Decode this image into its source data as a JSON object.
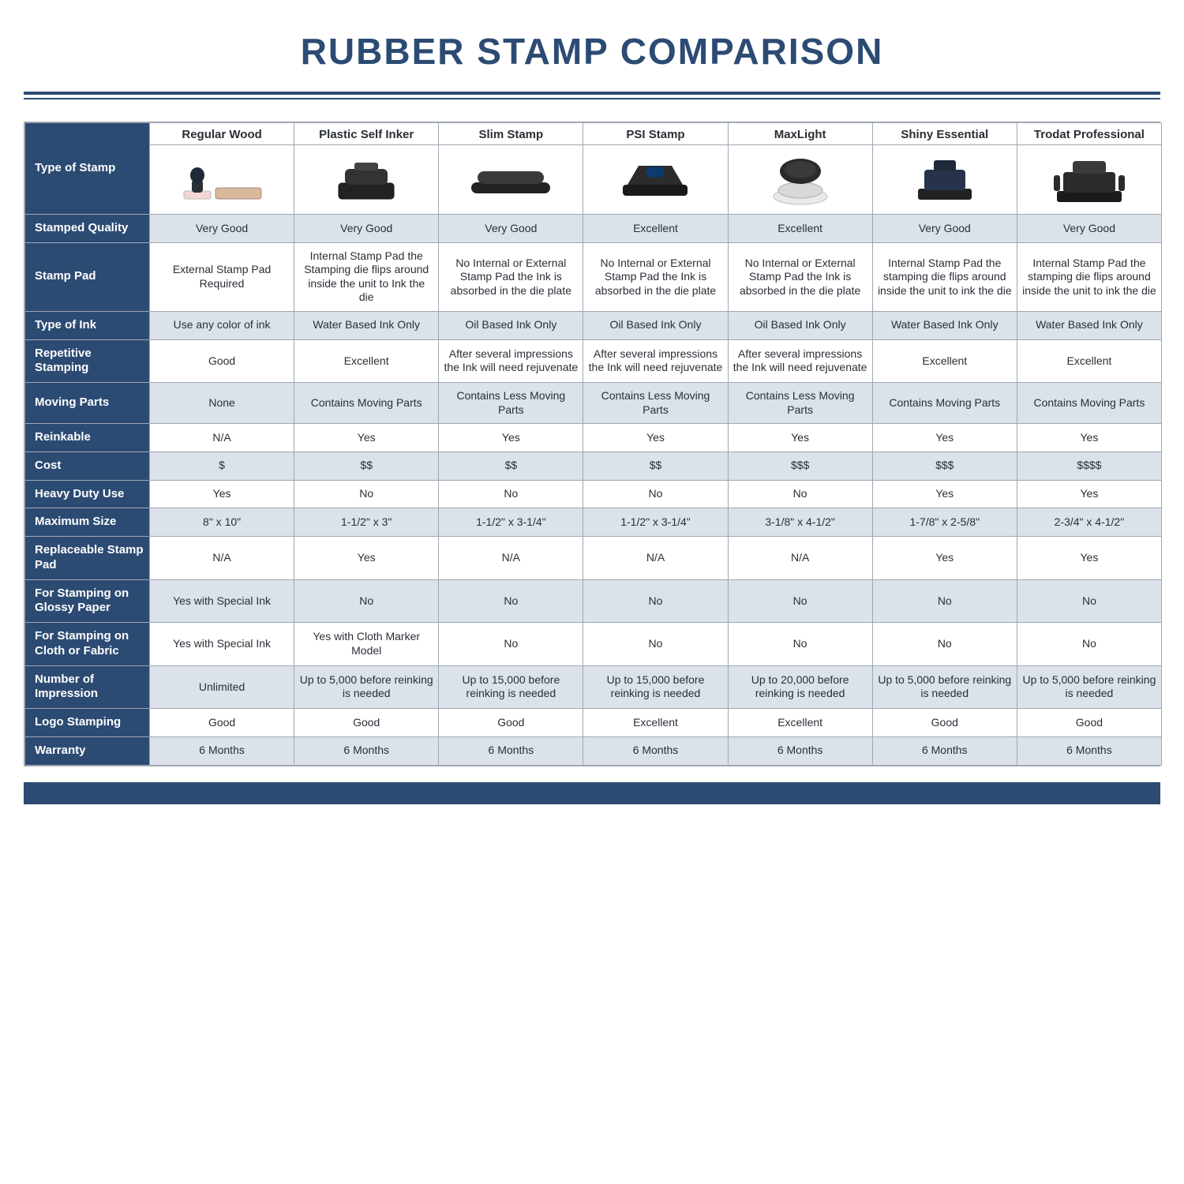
{
  "title": "RUBBER STAMP COMPARISON",
  "colors": {
    "navy": "#2c4b73",
    "alt_row": "#dbe2ea",
    "border": "#9fa7b2",
    "text": "#2a2f36",
    "white": "#ffffff"
  },
  "columns": [
    "Regular Wood",
    "Plastic Self Inker",
    "Slim Stamp",
    "PSI Stamp",
    "MaxLight",
    "Shiny Essential",
    "Trodat Professional"
  ],
  "type_of_stamp_label": "Type of Stamp",
  "rows": [
    {
      "label": "Stamped Quality",
      "alt": true,
      "cells": [
        "Very Good",
        "Very Good",
        "Very Good",
        "Excellent",
        "Excellent",
        "Very Good",
        "Very Good"
      ]
    },
    {
      "label": "Stamp Pad",
      "alt": false,
      "cells": [
        "External Stamp Pad Required",
        "Internal Stamp Pad the Stamping die flips around inside the unit to Ink the die",
        "No Internal or External Stamp Pad the Ink is absorbed in the die plate",
        "No Internal or External Stamp Pad the Ink is absorbed in the die plate",
        "No Internal or External Stamp Pad the Ink is absorbed in the die plate",
        "Internal Stamp Pad the stamping die flips around inside the unit to ink the die",
        "Internal Stamp Pad the stamping die flips around inside the unit to ink the die"
      ]
    },
    {
      "label": "Type of Ink",
      "alt": true,
      "cells": [
        "Use any color of ink",
        "Water Based Ink Only",
        "Oil Based Ink Only",
        "Oil Based Ink Only",
        "Oil Based Ink Only",
        "Water Based Ink Only",
        "Water Based Ink Only"
      ]
    },
    {
      "label": "Repetitive Stamping",
      "alt": false,
      "cells": [
        "Good",
        "Excellent",
        "After several impressions the Ink will need rejuvenate",
        "After several impressions the Ink will need rejuvenate",
        "After several impressions the Ink will need rejuvenate",
        "Excellent",
        "Excellent"
      ]
    },
    {
      "label": "Moving Parts",
      "alt": true,
      "cells": [
        "None",
        "Contains Moving Parts",
        "Contains Less Moving Parts",
        "Contains Less Moving Parts",
        "Contains Less Moving Parts",
        "Contains Moving Parts",
        "Contains Moving Parts"
      ]
    },
    {
      "label": "Reinkable",
      "alt": false,
      "cells": [
        "N/A",
        "Yes",
        "Yes",
        "Yes",
        "Yes",
        "Yes",
        "Yes"
      ]
    },
    {
      "label": "Cost",
      "alt": true,
      "cells": [
        "$",
        "$$",
        "$$",
        "$$",
        "$$$",
        "$$$",
        "$$$$"
      ]
    },
    {
      "label": "Heavy Duty Use",
      "alt": false,
      "cells": [
        "Yes",
        "No",
        "No",
        "No",
        "No",
        "Yes",
        "Yes"
      ]
    },
    {
      "label": "Maximum Size",
      "alt": true,
      "cells": [
        "8\" x 10\"",
        "1-1/2\" x 3\"",
        "1-1/2\" x 3-1/4\"",
        "1-1/2\" x 3-1/4\"",
        "3-1/8\" x 4-1/2\"",
        "1-7/8\" x 2-5/8\"",
        "2-3/4\" x 4-1/2\""
      ]
    },
    {
      "label": "Replaceable Stamp Pad",
      "alt": false,
      "cells": [
        "N/A",
        "Yes",
        "N/A",
        "N/A",
        "N/A",
        "Yes",
        "Yes"
      ]
    },
    {
      "label": "For Stamping on Glossy Paper",
      "alt": true,
      "cells": [
        "Yes with Special Ink",
        "No",
        "No",
        "No",
        "No",
        "No",
        "No"
      ]
    },
    {
      "label": "For Stamping on Cloth or Fabric",
      "alt": false,
      "cells": [
        "Yes with Special Ink",
        "Yes with Cloth Marker Model",
        "No",
        "No",
        "No",
        "No",
        "No"
      ]
    },
    {
      "label": "Number of Impression",
      "alt": true,
      "cells": [
        "Unlimited",
        "Up to 5,000 before reinking is needed",
        "Up to 15,000 before reinking is needed",
        "Up to 15,000 before reinking is needed",
        "Up to 20,000 before reinking is needed",
        "Up to 5,000 before reinking is needed",
        "Up to 5,000 before reinking is needed"
      ]
    },
    {
      "label": "Logo Stamping",
      "alt": false,
      "cells": [
        "Good",
        "Good",
        "Good",
        "Excellent",
        "Excellent",
        "Good",
        "Good"
      ]
    },
    {
      "label": "Warranty",
      "alt": true,
      "cells": [
        "6 Months",
        "6 Months",
        "6 Months",
        "6 Months",
        "6 Months",
        "6 Months",
        "6 Months"
      ]
    }
  ]
}
